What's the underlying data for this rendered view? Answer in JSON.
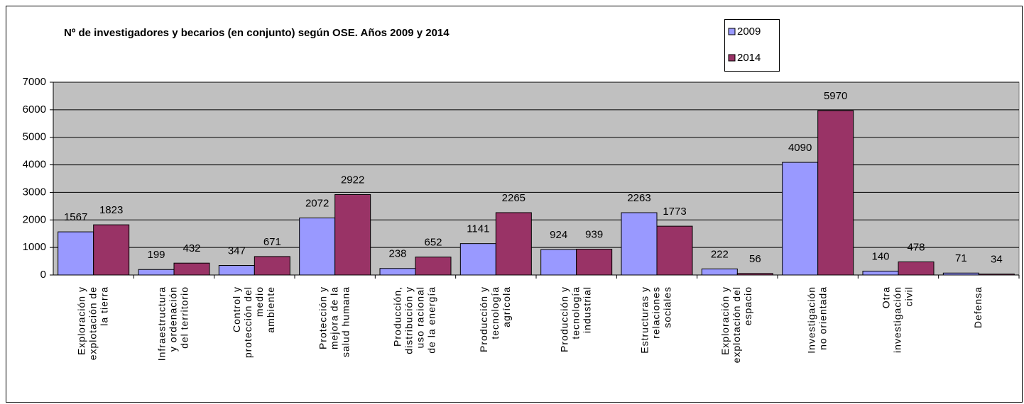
{
  "chart_data": {
    "type": "bar",
    "title": "Nº de investigadores y becarios (en conjunto) según OSE. Años 2009 y 2014",
    "categories": [
      [
        "Exploración y",
        "explotación de",
        "la tierra"
      ],
      [
        "Infraestructura",
        "y ordenación",
        "del territorio"
      ],
      [
        "Control y",
        "protección del",
        "medio",
        "ambiente"
      ],
      [
        "Protección y",
        "mejora de la",
        "salud humana"
      ],
      [
        "Producción,",
        "distribución y",
        "uso racional",
        "de la energía"
      ],
      [
        "Producción y",
        "tecnología",
        "agrícola"
      ],
      [
        "Producción y",
        "tecnología",
        "industrial"
      ],
      [
        "Estructuras y",
        "relaciones",
        "sociales"
      ],
      [
        "Exploración y",
        "explotación del",
        "espacio"
      ],
      [
        "Investigación",
        "no orientada"
      ],
      [
        "Otra",
        "investigación",
        "civil"
      ],
      [
        "Defensa"
      ]
    ],
    "series": [
      {
        "name": "2009",
        "color": "#9999ff",
        "values": [
          1567,
          199,
          347,
          2072,
          238,
          1141,
          924,
          2263,
          222,
          4090,
          140,
          71
        ]
      },
      {
        "name": "2014",
        "color": "#993366",
        "values": [
          1823,
          432,
          671,
          2922,
          652,
          2265,
          939,
          1773,
          56,
          5970,
          478,
          34
        ]
      }
    ],
    "ylim": [
      0,
      7000
    ],
    "yticks": [
      0,
      1000,
      2000,
      3000,
      4000,
      5000,
      6000,
      7000
    ],
    "grid": true,
    "plot_background": "#c0c0c0",
    "legend": "top-right"
  }
}
